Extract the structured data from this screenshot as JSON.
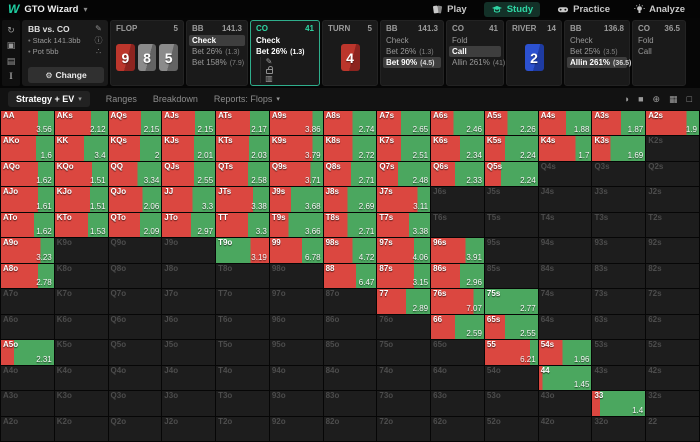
{
  "app": {
    "logo": "W",
    "title": "GTO Wizard"
  },
  "nav": [
    {
      "label": "Play",
      "icon": "cards-icon",
      "active": false
    },
    {
      "label": "Study",
      "icon": "grad-cap-icon",
      "active": true
    },
    {
      "label": "Practice",
      "icon": "gamepad-icon",
      "active": false
    },
    {
      "label": "Analyze",
      "icon": "bulb-icon",
      "active": false
    }
  ],
  "rail_icons": [
    "history-icon",
    "save-icon",
    "replay-icon",
    "text-cursor-icon"
  ],
  "config": {
    "title": "BB vs. CO",
    "lines": [
      "Stack 141.3bb",
      "Pot 5bb"
    ],
    "side_icons": [
      "pencil-icon",
      "info-icon",
      "share-icon"
    ],
    "button": "Change"
  },
  "panels": [
    {
      "type": "board",
      "name": "FLOP",
      "pot": "5",
      "cards": [
        {
          "rank": "9",
          "suit_color": "red"
        },
        {
          "rank": "8",
          "suit_color": "gray"
        },
        {
          "rank": "5",
          "suit_color": "gray"
        }
      ]
    },
    {
      "type": "actions",
      "name": "BB",
      "stack": "141.3",
      "actions": [
        {
          "label": "Check",
          "selected": true
        },
        {
          "label": "Bet 26%",
          "amount": "(1.3)"
        },
        {
          "label": "Bet 158%",
          "amount": "(7.9)"
        }
      ]
    },
    {
      "type": "actions",
      "name": "CO",
      "stack": "41",
      "current": true,
      "side_icons": [
        "pencil-icon",
        "lock-icon",
        "book-icon"
      ],
      "actions": [
        {
          "label": "Check",
          "bright": true
        },
        {
          "label": "Bet 26%",
          "amount": "(1.3)",
          "bright": true
        }
      ]
    },
    {
      "type": "board",
      "name": "TURN",
      "pot": "5",
      "cards": [
        {
          "rank": "4",
          "suit_color": "red"
        }
      ]
    },
    {
      "type": "actions",
      "name": "BB",
      "stack": "141.3",
      "actions": [
        {
          "label": "Check"
        },
        {
          "label": "Bet 26%",
          "amount": "(1.3)"
        },
        {
          "label": "Bet 90%",
          "amount": "(4.5)",
          "selected": true
        }
      ]
    },
    {
      "type": "actions",
      "name": "CO",
      "stack": "41",
      "actions": [
        {
          "label": "Fold"
        },
        {
          "label": "Call",
          "selected": true
        },
        {
          "label": "Allin 261%",
          "amount": "(41)"
        }
      ]
    },
    {
      "type": "board",
      "name": "RIVER",
      "pot": "14",
      "cards": [
        {
          "rank": "2",
          "suit_color": "blue"
        }
      ]
    },
    {
      "type": "actions",
      "name": "BB",
      "stack": "136.8",
      "actions": [
        {
          "label": "Check"
        },
        {
          "label": "Bet 25%",
          "amount": "(3.5)"
        },
        {
          "label": "Allin 261%",
          "amount": "(36.5)",
          "selected": true
        }
      ]
    },
    {
      "type": "actions",
      "name": "CO",
      "stack": "36.5",
      "actions": [
        {
          "label": "Fold"
        },
        {
          "label": "Call"
        }
      ]
    }
  ],
  "toolbar": {
    "tabs": [
      {
        "label": "Strategy + EV",
        "caret": true,
        "active": true
      },
      {
        "label": "Ranges"
      },
      {
        "label": "Breakdown"
      },
      {
        "label": "Reports: Flops",
        "caret": true
      }
    ],
    "right_icons": [
      "contrast-icon",
      "color-swatch-icon",
      "target-icon",
      "grid-icon",
      "fullscreen-icon"
    ]
  },
  "colors": {
    "bet": "#db4740",
    "check": "#4ba75f",
    "accent": "#2fd6a4",
    "inactive_cell": "#1d1d1d"
  },
  "legend": {
    "b": "bet (red)",
    "c": "check (green)",
    "seg_format": "color + width %, left to right"
  },
  "grid": {
    "rows": [
      [
        [
          "AA",
          "3.56",
          "b70 c30"
        ],
        [
          "AKs",
          "2.12",
          "b68 c32"
        ],
        [
          "AQs",
          "2.15",
          "b62 c38"
        ],
        [
          "AJs",
          "2.15",
          "b62 c38"
        ],
        [
          "ATs",
          "2.17",
          "b64 c36"
        ],
        [
          "A9s",
          "3.86",
          "b80 c20"
        ],
        [
          "A8s",
          "2.74",
          "b55 c45"
        ],
        [
          "A7s",
          "2.65",
          "b45 c55"
        ],
        [
          "A6s",
          "2.46",
          "b42 c58"
        ],
        [
          "A5s",
          "2.26",
          "b42 c58"
        ],
        [
          "A4s",
          "1.88",
          "b52 c48"
        ],
        [
          "A3s",
          "1.87",
          "b55 c45"
        ],
        [
          "A2s",
          "1.9",
          "b76 c24"
        ]
      ],
      [
        [
          "AKo",
          "1.6",
          "b66 c34"
        ],
        [
          "KK",
          "3.4",
          "b55 c45"
        ],
        [
          "KQs",
          "2",
          "b60 c40"
        ],
        [
          "KJs",
          "2.01",
          "b60 c40"
        ],
        [
          "KTs",
          "2.03",
          "b62 c38"
        ],
        [
          "K9s",
          "3.79",
          "b80 c20"
        ],
        [
          "K8s",
          "2.72",
          "b55 c45"
        ],
        [
          "K7s",
          "2.51",
          "b45 c55"
        ],
        [
          "K6s",
          "2.34",
          "b55 c45"
        ],
        [
          "K5s",
          "2.24",
          "b38 c62"
        ],
        [
          "K4s",
          "1.7",
          "b70 c30"
        ],
        [
          "K3s",
          "1.69",
          "b35 c65"
        ],
        [
          "K2s"
        ]
      ],
      [
        [
          "AQo",
          "1.62",
          "b70 c30"
        ],
        [
          "KQo",
          "1.51",
          "b70 c30"
        ],
        [
          "QQ",
          "3.34",
          "b55 c45"
        ],
        [
          "QJs",
          "2.55",
          "b60 c40"
        ],
        [
          "QTs",
          "2.58",
          "b60 c40"
        ],
        [
          "Q9s",
          "3.71",
          "b76 c24"
        ],
        [
          "Q8s",
          "2.71",
          "b52 c48"
        ],
        [
          "Q7s",
          "2.48",
          "b40 c60"
        ],
        [
          "Q6s",
          "2.33",
          "b45 c55"
        ],
        [
          "Q5s",
          "2.24",
          "b30 c70"
        ],
        [
          "Q4s"
        ],
        [
          "Q3s"
        ],
        [
          "Q2s"
        ]
      ],
      [
        [
          "AJo",
          "1.61",
          "b70 c30"
        ],
        [
          "KJo",
          "1.51",
          "b66 c34"
        ],
        [
          "QJo",
          "2.06",
          "b64 c36"
        ],
        [
          "JJ",
          "3.3",
          "b58 c42"
        ],
        [
          "JTs",
          "3.38",
          "b70 c30"
        ],
        [
          "J9s",
          "3.68",
          "b40 c60"
        ],
        [
          "J8s",
          "2.69",
          "b45 c55"
        ],
        [
          "J7s",
          "3.11",
          "b76 c24"
        ],
        [
          "J6s"
        ],
        [
          "J5s"
        ],
        [
          "J4s"
        ],
        [
          "J3s"
        ],
        [
          "J2s"
        ]
      ],
      [
        [
          "ATo",
          "1.62",
          "b62 c38"
        ],
        [
          "KTo",
          "1.53",
          "b62 c38"
        ],
        [
          "QTo",
          "2.09",
          "b60 c40"
        ],
        [
          "JTo",
          "2.97",
          "b55 c45"
        ],
        [
          "TT",
          "3.3",
          "b60 c40"
        ],
        [
          "T9s",
          "3.66",
          "b35 c65"
        ],
        [
          "T8s",
          "2.71",
          "b45 c55"
        ],
        [
          "T7s",
          "3.38",
          "b60 c40"
        ],
        [
          "T6s"
        ],
        [
          "T5s"
        ],
        [
          "T4s"
        ],
        [
          "T3s"
        ],
        [
          "T2s"
        ]
      ],
      [
        [
          "A9o",
          "3.23",
          "b75 c25"
        ],
        [
          "K9o"
        ],
        [
          "Q9o"
        ],
        [
          "J9o"
        ],
        [
          "T9o",
          "3.19",
          "c65 b35"
        ],
        [
          "99",
          "6.78",
          "b60 c40"
        ],
        [
          "98s",
          "4.72",
          "b55 c45"
        ],
        [
          "97s",
          "4.06",
          "b70 c30"
        ],
        [
          "96s",
          "3.91",
          "b65 c35"
        ],
        [
          "95s"
        ],
        [
          "94s"
        ],
        [
          "93s"
        ],
        [
          "92s"
        ]
      ],
      [
        [
          "A8o",
          "2.78",
          "b70 c30"
        ],
        [
          "K8o"
        ],
        [
          "Q8o"
        ],
        [
          "J8o"
        ],
        [
          "T8o"
        ],
        [
          "98o"
        ],
        [
          "88",
          "6.47",
          "b62 c38"
        ],
        [
          "87s",
          "3.15",
          "b70 c30"
        ],
        [
          "86s",
          "2.96",
          "b55 c45"
        ],
        [
          "85s"
        ],
        [
          "84s"
        ],
        [
          "83s"
        ],
        [
          "82s"
        ]
      ],
      [
        [
          "A7o"
        ],
        [
          "K7o"
        ],
        [
          "Q7o"
        ],
        [
          "J7o"
        ],
        [
          "T7o"
        ],
        [
          "97o"
        ],
        [
          "87o"
        ],
        [
          "77",
          "2.89",
          "b55 c45"
        ],
        [
          "76s",
          "7.07",
          "b80 c20"
        ],
        [
          "75s",
          "2.77",
          "c100"
        ],
        [
          "74s"
        ],
        [
          "73s"
        ],
        [
          "72s"
        ]
      ],
      [
        [
          "A6o"
        ],
        [
          "K6o"
        ],
        [
          "Q6o"
        ],
        [
          "J6o"
        ],
        [
          "T6o"
        ],
        [
          "96o"
        ],
        [
          "86o"
        ],
        [
          "76o"
        ],
        [
          "66",
          "2.59",
          "b45 c55"
        ],
        [
          "65s",
          "2.55",
          "b38 c62"
        ],
        [
          "64s"
        ],
        [
          "63s"
        ],
        [
          "62s"
        ]
      ],
      [
        [
          "A5o",
          "2.31",
          "b25 c75"
        ],
        [
          "K5o"
        ],
        [
          "Q5o"
        ],
        [
          "J5o"
        ],
        [
          "T5o"
        ],
        [
          "95o"
        ],
        [
          "85o"
        ],
        [
          "75o"
        ],
        [
          "65o"
        ],
        [
          "55",
          "6.21",
          "b85 c15"
        ],
        [
          "54s",
          "1.96",
          "b45 c55"
        ],
        [
          "53s"
        ],
        [
          "52s"
        ]
      ],
      [
        [
          "A4o"
        ],
        [
          "K4o"
        ],
        [
          "Q4o"
        ],
        [
          "J4o"
        ],
        [
          "T4o"
        ],
        [
          "94o"
        ],
        [
          "84o"
        ],
        [
          "74o"
        ],
        [
          "64o"
        ],
        [
          "54o"
        ],
        [
          "44",
          "1.45",
          "b7 c93"
        ],
        [
          "43s"
        ],
        [
          "42s"
        ]
      ],
      [
        [
          "A3o"
        ],
        [
          "K3o"
        ],
        [
          "Q3o"
        ],
        [
          "J3o"
        ],
        [
          "T3o"
        ],
        [
          "93o"
        ],
        [
          "83o"
        ],
        [
          "73o"
        ],
        [
          "63o"
        ],
        [
          "53o"
        ],
        [
          "43o"
        ],
        [
          "33",
          "1.4",
          "b15 c85"
        ],
        [
          "32s"
        ]
      ],
      [
        [
          "A2o"
        ],
        [
          "K2o"
        ],
        [
          "Q2o"
        ],
        [
          "J2o"
        ],
        [
          "T2o"
        ],
        [
          "92o"
        ],
        [
          "82o"
        ],
        [
          "72o"
        ],
        [
          "62o"
        ],
        [
          "52o"
        ],
        [
          "42o"
        ],
        [
          "32o"
        ],
        [
          "22"
        ]
      ]
    ]
  }
}
